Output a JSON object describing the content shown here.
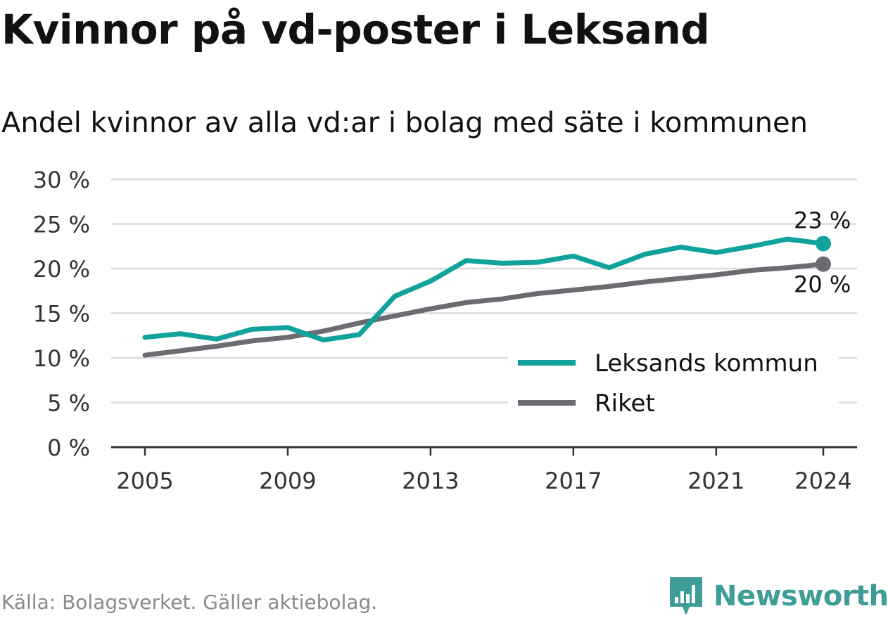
{
  "title": "Kvinnor på vd-poster i Leksand",
  "subtitle": "Andel kvinnor av alla vd:ar i bolag med säte i kommunen",
  "source": "Källa: Bolagsverket. Gäller aktiebolag.",
  "brand": {
    "name": "Newsworthy",
    "icon": "newsworthy-logo-icon",
    "color": "#3e9d97"
  },
  "chart_data": {
    "type": "line",
    "title": "Kvinnor på vd-poster i Leksand",
    "subtitle": "Andel kvinnor av alla vd:ar i bolag med säte i kommunen",
    "ylim": [
      0,
      30
    ],
    "yticks": [
      0,
      5,
      10,
      15,
      20,
      25,
      30
    ],
    "ytick_labels": [
      "0 %",
      "5 %",
      "10 %",
      "15 %",
      "20 %",
      "25 %",
      "30 %"
    ],
    "xlim": [
      2005,
      2024
    ],
    "xticks": [
      2005,
      2009,
      2013,
      2017,
      2021,
      2024
    ],
    "xtick_labels": [
      "2005",
      "2009",
      "2013",
      "2017",
      "2021",
      "2024"
    ],
    "grid": true,
    "legend_position": "bottom-right",
    "x": [
      2005,
      2006,
      2007,
      2008,
      2009,
      2010,
      2011,
      2012,
      2013,
      2014,
      2015,
      2016,
      2017,
      2018,
      2019,
      2020,
      2021,
      2022,
      2023,
      2024
    ],
    "series": [
      {
        "name": "Leksands kommun",
        "color": "#11a39b",
        "values": [
          12.3,
          12.7,
          12.1,
          13.2,
          13.4,
          12.0,
          12.6,
          16.9,
          18.6,
          20.9,
          20.6,
          20.7,
          21.4,
          20.1,
          21.6,
          22.4,
          21.8,
          22.5,
          23.3,
          22.8
        ],
        "end_label": "23 %"
      },
      {
        "name": "Riket",
        "color": "#6b6b72",
        "values": [
          10.3,
          10.8,
          11.3,
          11.9,
          12.3,
          13.0,
          13.9,
          14.7,
          15.5,
          16.2,
          16.6,
          17.2,
          17.6,
          18.0,
          18.5,
          18.9,
          19.3,
          19.8,
          20.1,
          20.5
        ],
        "end_label": "20 %"
      }
    ]
  }
}
